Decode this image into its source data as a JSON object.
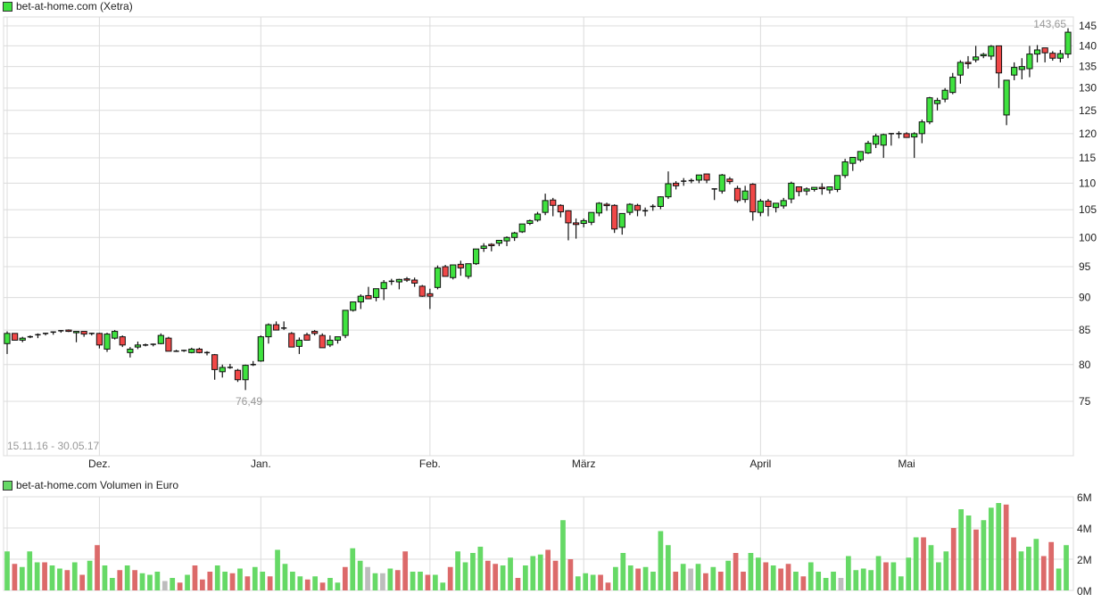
{
  "price_panel": {
    "legend_label": "bet-at-home.com (Xetra)",
    "legend_color": "#3fe23f",
    "date_range": "15.11.16 - 30.05.17",
    "high_label": "143,65",
    "low_label": "76,49"
  },
  "volume_panel": {
    "legend_label": "bet-at-home.com Volumen in Euro",
    "legend_color": "#66d966"
  },
  "colors": {
    "up": "#3fe23f",
    "down": "#f04848",
    "vol_up": "#66d966",
    "vol_down": "#dc6a6a",
    "vol_flat": "#bdbdbd",
    "grid": "#dcdcdc"
  },
  "chart_data": [
    {
      "type": "candlestick",
      "title": "bet-at-home.com (Xetra)",
      "subtitle": "15.11.16 - 30.05.17",
      "xlabel": "",
      "ylabel": "",
      "yscale": "log",
      "ylim": [
        70,
        147
      ],
      "yticks": [
        75,
        80,
        85,
        90,
        95,
        100,
        105,
        110,
        115,
        120,
        125,
        130,
        135,
        140,
        145
      ],
      "xticks": [
        {
          "label": "Dez.",
          "index": 12
        },
        {
          "label": "Jan.",
          "index": 33
        },
        {
          "label": "Feb.",
          "index": 55
        },
        {
          "label": "März",
          "index": 75
        },
        {
          "label": "April",
          "index": 98
        },
        {
          "label": "Mai",
          "index": 117
        }
      ],
      "grid": true,
      "annotations": [
        {
          "text": "143,65",
          "note": "period high"
        },
        {
          "text": "76,49",
          "note": "period low"
        }
      ],
      "ohlc": [
        [
          83.0,
          84.8,
          81.5,
          84.5
        ],
        [
          84.5,
          84.5,
          83.5,
          83.5
        ],
        [
          83.5,
          84.0,
          83.2,
          83.8
        ],
        [
          84.0,
          84.2,
          83.8,
          84.0
        ],
        [
          84.2,
          84.5,
          83.8,
          84.3
        ],
        [
          84.5,
          84.6,
          84.2,
          84.5
        ],
        [
          84.7,
          84.8,
          84.3,
          84.7
        ],
        [
          84.9,
          85.0,
          84.6,
          84.9
        ],
        [
          85.0,
          85.1,
          84.7,
          84.8
        ],
        [
          84.6,
          84.8,
          83.2,
          84.8
        ],
        [
          84.8,
          84.8,
          84.0,
          84.4
        ],
        [
          84.5,
          84.6,
          84.2,
          84.5
        ],
        [
          84.5,
          84.6,
          82.3,
          82.8
        ],
        [
          82.2,
          84.6,
          81.8,
          84.4
        ],
        [
          83.8,
          85.0,
          83.6,
          84.8
        ],
        [
          84.0,
          84.2,
          82.5,
          82.8
        ],
        [
          81.7,
          82.5,
          81.0,
          82.2
        ],
        [
          82.5,
          83.3,
          82.2,
          82.8
        ],
        [
          82.8,
          83.0,
          82.6,
          82.8
        ],
        [
          82.9,
          83.0,
          82.6,
          82.9
        ],
        [
          83.0,
          84.5,
          82.9,
          84.2
        ],
        [
          83.8,
          84.0,
          81.9,
          81.9
        ],
        [
          81.9,
          82.1,
          81.8,
          81.9
        ],
        [
          82.0,
          82.1,
          81.8,
          81.9
        ],
        [
          81.7,
          82.4,
          81.6,
          82.2
        ],
        [
          82.2,
          82.4,
          81.6,
          81.7
        ],
        [
          81.7,
          81.9,
          81.3,
          81.7
        ],
        [
          81.4,
          81.5,
          77.9,
          79.3
        ],
        [
          79.0,
          80.0,
          78.2,
          79.6
        ],
        [
          79.6,
          80.1,
          79.4,
          79.6
        ],
        [
          79.2,
          79.4,
          77.6,
          77.9
        ],
        [
          77.9,
          80.0,
          76.5,
          79.9
        ],
        [
          80.0,
          80.5,
          79.8,
          80.0
        ],
        [
          80.5,
          84.2,
          80.4,
          84.0
        ],
        [
          84.0,
          86.0,
          83.0,
          85.8
        ],
        [
          85.8,
          86.3,
          85.2,
          85.0
        ],
        [
          85.3,
          86.3,
          85.0,
          85.2
        ],
        [
          84.5,
          84.7,
          82.7,
          82.5
        ],
        [
          82.6,
          83.9,
          81.5,
          83.5
        ],
        [
          84.3,
          84.6,
          83.5,
          83.5
        ],
        [
          84.8,
          85.0,
          84.2,
          84.5
        ],
        [
          84.2,
          84.5,
          82.6,
          82.4
        ],
        [
          82.8,
          84.2,
          82.5,
          83.5
        ],
        [
          83.5,
          84.0,
          83.0,
          84.0
        ],
        [
          84.2,
          88.0,
          83.8,
          88.0
        ],
        [
          88.0,
          89.2,
          87.8,
          89.3
        ],
        [
          89.3,
          90.5,
          88.2,
          90.2
        ],
        [
          90.3,
          91.7,
          89.8,
          89.8
        ],
        [
          90.0,
          91.0,
          89.4,
          91.4
        ],
        [
          91.4,
          92.8,
          89.6,
          92.4
        ],
        [
          92.6,
          93.0,
          92.0,
          92.6
        ],
        [
          92.5,
          93.0,
          91.3,
          92.9
        ],
        [
          93.0,
          93.3,
          92.5,
          92.8
        ],
        [
          92.8,
          93.2,
          91.7,
          92.3
        ],
        [
          91.8,
          92.0,
          90.1,
          90.2
        ],
        [
          90.6,
          91.4,
          88.2,
          90.2
        ],
        [
          91.6,
          95.2,
          91.3,
          94.8
        ],
        [
          95.0,
          95.3,
          93.4,
          93.4
        ],
        [
          93.2,
          95.3,
          92.9,
          95.3
        ],
        [
          95.4,
          96.0,
          93.5,
          94.8
        ],
        [
          93.4,
          95.5,
          93.0,
          95.5
        ],
        [
          95.5,
          97.5,
          95.3,
          98.0
        ],
        [
          98.1,
          99.0,
          97.5,
          98.5
        ],
        [
          98.8,
          99.0,
          97.6,
          98.6
        ],
        [
          99.0,
          99.5,
          98.5,
          99.5
        ],
        [
          99.4,
          100.2,
          98.5,
          100.0
        ],
        [
          100.0,
          101.0,
          99.4,
          100.8
        ],
        [
          101.0,
          102.3,
          100.8,
          102.4
        ],
        [
          102.5,
          103.2,
          102.2,
          103.0
        ],
        [
          103.1,
          104.6,
          102.8,
          104.2
        ],
        [
          104.5,
          108.0,
          104.0,
          106.7
        ],
        [
          106.8,
          107.2,
          103.8,
          105.8
        ],
        [
          105.8,
          106.0,
          103.6,
          104.6
        ],
        [
          104.8,
          104.9,
          99.5,
          102.6
        ],
        [
          102.6,
          103.4,
          99.8,
          102.3
        ],
        [
          102.5,
          103.4,
          101.8,
          103.0
        ],
        [
          102.7,
          104.5,
          102.2,
          104.5
        ],
        [
          104.4,
          106.4,
          103.8,
          106.2
        ],
        [
          106.0,
          106.3,
          104.8,
          105.8
        ],
        [
          105.8,
          106.0,
          100.8,
          101.5
        ],
        [
          101.8,
          104.2,
          100.5,
          104.3
        ],
        [
          104.5,
          106.2,
          104.0,
          106.0
        ],
        [
          105.8,
          106.1,
          103.8,
          104.9
        ],
        [
          104.8,
          105.4,
          103.8,
          104.8
        ],
        [
          105.6,
          106.0,
          104.8,
          105.5
        ],
        [
          105.6,
          107.5,
          105.1,
          107.4
        ],
        [
          107.4,
          112.3,
          107.0,
          109.9
        ],
        [
          110.0,
          110.4,
          108.8,
          109.5
        ],
        [
          110.3,
          111.0,
          109.5,
          110.4
        ],
        [
          110.5,
          110.9,
          110.0,
          110.4
        ],
        [
          110.6,
          111.4,
          110.0,
          111.6
        ],
        [
          111.8,
          111.8,
          110.0,
          110.6
        ],
        [
          108.9,
          108.9,
          106.8,
          108.8
        ],
        [
          108.5,
          111.8,
          108.0,
          111.6
        ],
        [
          110.8,
          111.2,
          109.8,
          110.3
        ],
        [
          109.0,
          109.5,
          106.3,
          106.7
        ],
        [
          106.9,
          109.5,
          106.3,
          108.5
        ],
        [
          109.8,
          110.0,
          103.0,
          104.6
        ],
        [
          104.5,
          107.0,
          103.8,
          106.6
        ],
        [
          106.6,
          107.0,
          103.8,
          105.6
        ],
        [
          105.4,
          106.0,
          104.5,
          106.2
        ],
        [
          105.7,
          107.2,
          105.2,
          106.7
        ],
        [
          107.0,
          110.3,
          106.2,
          110.0
        ],
        [
          109.3,
          109.3,
          107.5,
          108.4
        ],
        [
          108.5,
          109.2,
          107.7,
          108.9
        ],
        [
          108.8,
          109.2,
          108.4,
          109.2
        ],
        [
          109.2,
          110.0,
          107.8,
          109.0
        ],
        [
          108.7,
          109.3,
          108.0,
          109.3
        ],
        [
          108.8,
          110.8,
          108.3,
          111.5
        ],
        [
          111.5,
          114.8,
          111.0,
          114.2
        ],
        [
          113.9,
          115.0,
          112.4,
          115.1
        ],
        [
          114.6,
          116.2,
          114.2,
          116.3
        ],
        [
          116.0,
          118.5,
          115.8,
          118.0
        ],
        [
          117.8,
          120.0,
          117.0,
          119.5
        ],
        [
          117.6,
          120.0,
          115.0,
          119.8
        ],
        [
          120.0,
          120.0,
          117.5,
          120.0
        ],
        [
          120.0,
          120.5,
          119.0,
          120.0
        ],
        [
          120.0,
          120.3,
          119.5,
          119.2
        ],
        [
          119.3,
          120.3,
          115.0,
          120.0
        ],
        [
          120.0,
          123.0,
          118.0,
          122.5
        ],
        [
          122.5,
          128.0,
          122.0,
          127.8
        ],
        [
          126.5,
          127.8,
          125.0,
          127.2
        ],
        [
          127.5,
          130.0,
          126.8,
          129.5
        ],
        [
          129.0,
          133.5,
          128.6,
          132.5
        ],
        [
          133.0,
          136.5,
          131.0,
          136.0
        ],
        [
          136.0,
          137.5,
          134.5,
          135.8
        ],
        [
          136.6,
          140.0,
          136.0,
          137.3
        ],
        [
          137.6,
          138.3,
          137.0,
          137.9
        ],
        [
          137.5,
          140.2,
          136.6,
          139.9
        ],
        [
          140.0,
          140.0,
          130.0,
          133.5
        ],
        [
          124.0,
          131.0,
          121.8,
          131.8
        ],
        [
          133.0,
          136.0,
          131.8,
          134.8
        ],
        [
          134.3,
          137.0,
          132.0,
          135.0
        ],
        [
          134.5,
          140.0,
          132.5,
          138.0
        ],
        [
          138.0,
          140.2,
          136.0,
          139.0
        ],
        [
          139.5,
          139.5,
          136.0,
          138.3
        ],
        [
          138.2,
          138.7,
          136.4,
          137.0
        ],
        [
          137.0,
          139.0,
          136.0,
          138.1
        ],
        [
          138.0,
          144.4,
          137.0,
          143.4
        ]
      ]
    },
    {
      "type": "bar",
      "title": "bet-at-home.com Volumen in Euro",
      "ylabel": "",
      "ylim": [
        0,
        6
      ],
      "yticks": [
        "0M",
        "2M",
        "4M",
        "6M"
      ],
      "unit": "M EUR",
      "values": [
        2.5,
        1.7,
        1.5,
        2.5,
        1.8,
        1.8,
        1.6,
        1.4,
        1.3,
        1.8,
        1.0,
        1.9,
        2.9,
        1.6,
        0.8,
        1.3,
        1.6,
        1.3,
        1.1,
        1.0,
        1.2,
        0.6,
        0.8,
        0.5,
        1.0,
        1.6,
        0.7,
        1.2,
        1.6,
        1.2,
        1.1,
        1.4,
        0.9,
        1.5,
        1.2,
        0.9,
        2.6,
        1.7,
        1.2,
        0.9,
        0.7,
        0.9,
        0.5,
        0.8,
        0.5,
        1.5,
        2.7,
        1.9,
        1.5,
        1.1,
        1.1,
        1.4,
        1.3,
        2.5,
        1.2,
        1.2,
        1.0,
        1.0,
        0.5,
        1.5,
        2.5,
        1.8,
        2.4,
        2.8,
        1.9,
        1.7,
        1.6,
        2.1,
        0.8,
        1.6,
        2.2,
        2.3,
        2.6,
        1.9,
        4.5,
        2.0,
        0.9,
        1.1,
        1.0,
        1.0,
        0.5,
        1.5,
        2.4,
        1.6,
        1.4,
        1.5,
        1.2,
        3.8,
        2.9,
        1.2,
        1.7,
        1.4,
        1.7,
        1.1,
        1.5,
        1.2,
        1.9,
        2.4,
        1.2,
        2.4,
        2.1,
        1.8,
        1.6,
        1.4,
        1.7,
        1.2,
        0.9,
        1.8,
        1.2,
        0.8,
        1.2,
        0.8,
        2.2,
        1.3,
        1.4,
        1.3,
        2.2,
        1.8,
        1.8,
        0.9,
        2.1,
        3.4,
        3.4,
        2.9,
        1.8,
        2.5,
        4.0,
        5.2,
        4.8,
        3.9,
        4.5,
        5.3,
        5.6,
        5.5,
        3.4,
        2.5,
        2.8,
        3.3,
        2.2,
        3.1,
        1.4,
        2.9
      ],
      "colors": [
        "u",
        "d",
        "u",
        "u",
        "u",
        "d",
        "u",
        "u",
        "d",
        "u",
        "d",
        "u",
        "d",
        "u",
        "u",
        "d",
        "u",
        "d",
        "u",
        "u",
        "u",
        "f",
        "u",
        "d",
        "u",
        "d",
        "d",
        "d",
        "u",
        "u",
        "d",
        "u",
        "d",
        "u",
        "u",
        "d",
        "u",
        "u",
        "u",
        "u",
        "d",
        "u",
        "d",
        "u",
        "u",
        "d",
        "u",
        "u",
        "f",
        "u",
        "f",
        "u",
        "d",
        "d",
        "u",
        "u",
        "d",
        "u",
        "u",
        "d",
        "u",
        "u",
        "u",
        "u",
        "d",
        "d",
        "u",
        "u",
        "d",
        "u",
        "u",
        "u",
        "d",
        "d",
        "u",
        "d",
        "u",
        "u",
        "u",
        "d",
        "d",
        "u",
        "u",
        "u",
        "d",
        "u",
        "u",
        "u",
        "u",
        "d",
        "u",
        "f",
        "u",
        "d",
        "u",
        "d",
        "u",
        "d",
        "d",
        "u",
        "u",
        "d",
        "u",
        "d",
        "d",
        "u",
        "d",
        "u",
        "u",
        "u",
        "u",
        "f",
        "u",
        "u",
        "u",
        "u",
        "u",
        "d",
        "u",
        "u",
        "u",
        "u",
        "d",
        "u",
        "u",
        "u",
        "d",
        "u",
        "u",
        "d",
        "u",
        "u",
        "u",
        "d",
        "d",
        "u",
        "u",
        "u",
        "d",
        "d",
        "u",
        "u"
      ]
    }
  ]
}
